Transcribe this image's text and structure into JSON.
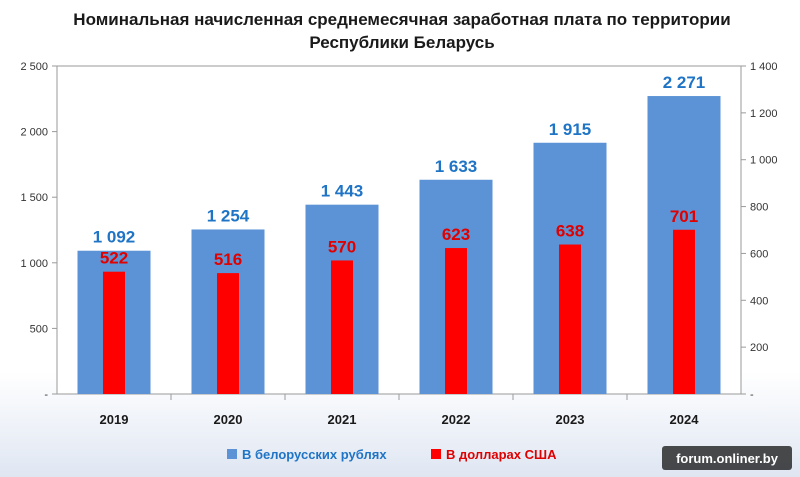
{
  "watermark": "forum.onliner.by",
  "colors": {
    "blue_series": "#5b93d6",
    "red_series": "#ff0000",
    "blue_label": "#1f74c6",
    "red_label": "#e00000"
  },
  "chart_data": {
    "type": "bar",
    "title_line1": "Номинальная начисленная среднемесячная заработная плата по территории",
    "title_line2": "Республики Беларусь",
    "categories": [
      "2019",
      "2020",
      "2021",
      "2022",
      "2023",
      "2024"
    ],
    "series": [
      {
        "name": "В белорусских рублях",
        "axis": "left",
        "values": [
          1092,
          1254,
          1443,
          1633,
          1915,
          2271
        ],
        "labels": [
          "1 092",
          "1 254",
          "1 443",
          "1 633",
          "1 915",
          "2 271"
        ]
      },
      {
        "name": "В долларах США",
        "axis": "right",
        "values": [
          522,
          516,
          570,
          623,
          638,
          701
        ],
        "labels": [
          "522",
          "516",
          "570",
          "623",
          "638",
          "701"
        ]
      }
    ],
    "y_left": {
      "min": 0,
      "max": 2500,
      "ticks": [
        2500,
        2000,
        1500,
        1000,
        500,
        0
      ],
      "tick_labels": [
        "2 500",
        "2 000",
        "1 500",
        "1 000",
        "500",
        "-"
      ]
    },
    "y_right": {
      "min": 0,
      "max": 1400,
      "ticks": [
        1400,
        1200,
        1000,
        800,
        600,
        400,
        200,
        0
      ],
      "tick_labels": [
        "1 400",
        "1 200",
        "1 000",
        "800",
        "600",
        "400",
        "200",
        "-"
      ]
    },
    "grid": false,
    "legend_position": "bottom"
  }
}
